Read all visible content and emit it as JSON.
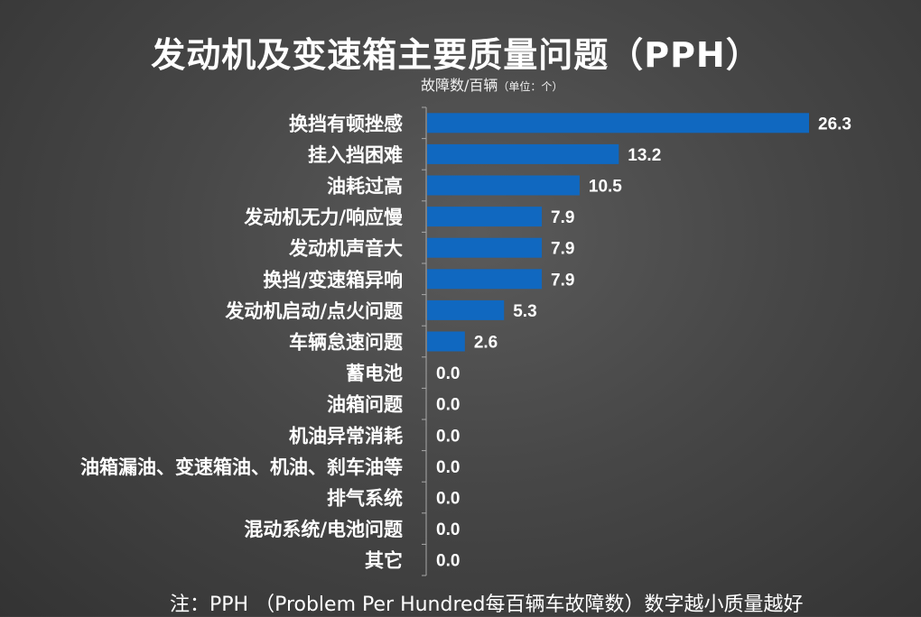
{
  "title": "发动机及变速箱主要质量问题（PPH）",
  "unit_main": "故障数/百辆",
  "unit_sub": "（单位：个）",
  "footnote": "注：PPH （Problem Per Hundred每百辆车故障数）数字越小质量越好",
  "colors": {
    "bar": "#1068C0",
    "axis": "#a8a8a8",
    "text": "#ffffff"
  },
  "chart_data": {
    "type": "bar",
    "orientation": "horizontal",
    "categories": [
      "换挡有顿挫感",
      "挂入挡困难",
      "油耗过高",
      "发动机无力/响应慢",
      "发动机声音大",
      "换挡/变速箱异响",
      "发动机启动/点火问题",
      "车辆怠速问题",
      "蓄电池",
      "油箱问题",
      "机油异常消耗",
      "油箱漏油、变速箱油、机油、刹车油等",
      "排气系统",
      "混动系统/电池问题",
      "其它"
    ],
    "values": [
      26.3,
      13.2,
      10.5,
      7.9,
      7.9,
      7.9,
      5.3,
      2.6,
      0.0,
      0.0,
      0.0,
      0.0,
      0.0,
      0.0,
      0.0
    ],
    "value_labels": [
      "26.3",
      "13.2",
      "10.5",
      "7.9",
      "7.9",
      "7.9",
      "5.3",
      "2.6",
      "0.0",
      "0.0",
      "0.0",
      "0.0",
      "0.0",
      "0.0",
      "0.0"
    ],
    "xlim": [
      0,
      26.3
    ],
    "grid": false,
    "legend": false
  }
}
